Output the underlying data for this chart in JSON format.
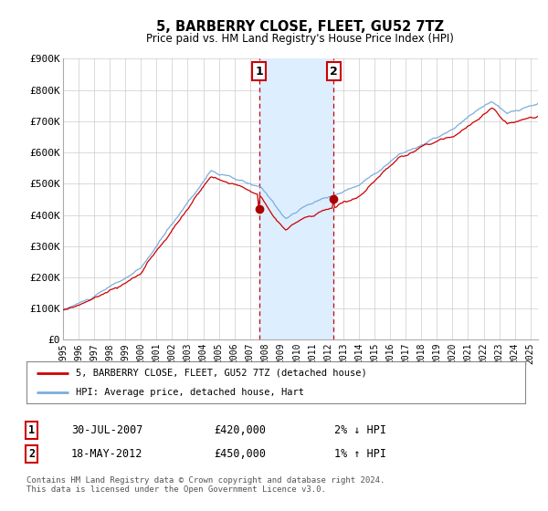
{
  "title": "5, BARBERRY CLOSE, FLEET, GU52 7TZ",
  "subtitle": "Price paid vs. HM Land Registry's House Price Index (HPI)",
  "ylabel_ticks": [
    "£0",
    "£100K",
    "£200K",
    "£300K",
    "£400K",
    "£500K",
    "£600K",
    "£700K",
    "£800K",
    "£900K"
  ],
  "ylabel_values": [
    0,
    100000,
    200000,
    300000,
    400000,
    500000,
    600000,
    700000,
    800000,
    900000
  ],
  "ylim": [
    0,
    900000
  ],
  "xlim_start": 1995.0,
  "xlim_end": 2025.5,
  "sale1_x": 2007.58,
  "sale1_y": 420000,
  "sale1_label": "30-JUL-2007",
  "sale1_price": "£420,000",
  "sale1_hpi": "2% ↓ HPI",
  "sale2_x": 2012.38,
  "sale2_y": 450000,
  "sale2_label": "18-MAY-2012",
  "sale2_price": "£450,000",
  "sale2_hpi": "1% ↑ HPI",
  "shade_x1": 2007.58,
  "shade_x2": 2012.38,
  "line1_color": "#cc0000",
  "line2_color": "#7aaddc",
  "marker_color": "#aa0000",
  "shade_color": "#ddeeff",
  "dashed_color": "#cc0000",
  "legend_label1": "5, BARBERRY CLOSE, FLEET, GU52 7TZ (detached house)",
  "legend_label2": "HPI: Average price, detached house, Hart",
  "footnote": "Contains HM Land Registry data © Crown copyright and database right 2024.\nThis data is licensed under the Open Government Licence v3.0.",
  "background_color": "#ffffff",
  "grid_color": "#cccccc"
}
